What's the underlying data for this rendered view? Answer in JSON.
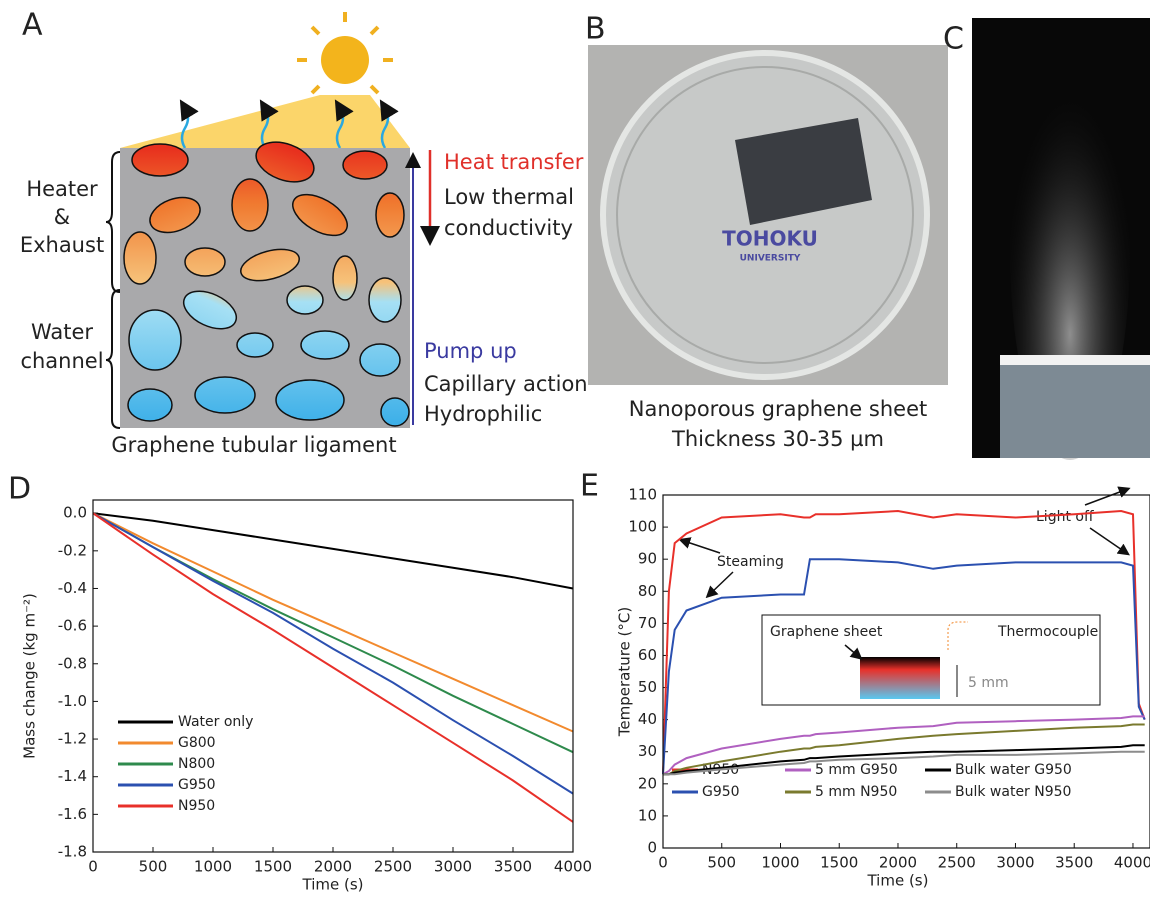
{
  "panel_a": {
    "letter": "A",
    "heater_label": [
      "Heater",
      "&",
      "Exhaust"
    ],
    "water_label": [
      "Water",
      "channel"
    ],
    "heat_transfer": "Heat transfer",
    "heat_lines": [
      "Low thermal",
      "conductivity"
    ],
    "pump_up": "Pump up",
    "pump_lines": [
      "Capillary action",
      "Hydrophilic"
    ],
    "caption": "Graphene tubular ligament"
  },
  "panel_b": {
    "letter": "B",
    "dish_text": [
      "TOHOKU",
      "UNIVERSITY"
    ],
    "caption": [
      "Nanoporous graphene sheet",
      "Thickness 30-35 µm"
    ]
  },
  "panel_c": {
    "letter": "C"
  },
  "chart_data": [
    {
      "type": "line",
      "panel_label": "D",
      "xlabel": "Time (s)",
      "ylabel": "Mass change (kg m⁻²)",
      "x": [
        0,
        500,
        1000,
        1500,
        2000,
        2500,
        3000,
        3500,
        4000
      ],
      "series": [
        {
          "name": "Water only",
          "color": "#000000",
          "values": [
            0,
            -0.04,
            -0.09,
            -0.14,
            -0.19,
            -0.24,
            -0.29,
            -0.34,
            -0.4
          ]
        },
        {
          "name": "G800",
          "color": "#f28a2e",
          "values": [
            0,
            -0.16,
            -0.31,
            -0.46,
            -0.6,
            -0.74,
            -0.88,
            -1.02,
            -1.16
          ]
        },
        {
          "name": "N800",
          "color": "#2e8a4c",
          "values": [
            0,
            -0.18,
            -0.35,
            -0.51,
            -0.66,
            -0.81,
            -0.97,
            -1.12,
            -1.27
          ]
        },
        {
          "name": "G950",
          "color": "#2b50b0",
          "values": [
            0,
            -0.18,
            -0.36,
            -0.53,
            -0.72,
            -0.9,
            -1.1,
            -1.29,
            -1.49
          ]
        },
        {
          "name": "N950",
          "color": "#e8302a",
          "values": [
            0,
            -0.22,
            -0.43,
            -0.62,
            -0.82,
            -1.02,
            -1.22,
            -1.42,
            -1.64
          ]
        }
      ],
      "xlim": [
        0,
        4000
      ],
      "xticks": [
        0,
        500,
        1000,
        1500,
        2000,
        2500,
        3000,
        3500,
        4000
      ],
      "ylim": [
        -1.8,
        0.07
      ],
      "yticks": [
        {
          "value": 0,
          "label": "0.0"
        },
        -0.2,
        -0.4,
        -0.6,
        -0.8,
        {
          "value": -1,
          "label": "-1.0"
        },
        -1.2,
        -1.4,
        -1.6,
        -1.8
      ],
      "legend": "lower left"
    },
    {
      "type": "line",
      "panel_label": "E",
      "xlabel": "Time (s)",
      "ylabel": "Temperature (°C)",
      "x": [
        0,
        50,
        100,
        200,
        500,
        1000,
        1200,
        1250,
        1300,
        1500,
        2000,
        2300,
        2500,
        3000,
        3500,
        3900,
        4000,
        4050,
        4100
      ],
      "series": [
        {
          "name": "N950",
          "color": "#e8302a",
          "values": [
            23,
            80,
            95,
            98,
            103,
            104,
            103,
            103,
            104,
            104,
            105,
            103,
            104,
            103,
            104,
            105,
            104,
            45,
            40
          ]
        },
        {
          "name": "G950",
          "color": "#2b50b0",
          "values": [
            23,
            55,
            68,
            74,
            78,
            79,
            79,
            90,
            90,
            90,
            89,
            87,
            88,
            89,
            89,
            89,
            88,
            44,
            40
          ]
        },
        {
          "name": "5 mm G950",
          "color": "#b060c0",
          "values": [
            23,
            24,
            26,
            28,
            31,
            34,
            35,
            35,
            35.5,
            36,
            37.5,
            38,
            39,
            39.5,
            40,
            40.5,
            41,
            41,
            41
          ]
        },
        {
          "name": "5 mm N950",
          "color": "#7a7a2e",
          "values": [
            23,
            23,
            24,
            25,
            27,
            30,
            31,
            31,
            31.5,
            32,
            34,
            35,
            35.5,
            36.5,
            37.5,
            38,
            38.5,
            38.5,
            38.5
          ]
        },
        {
          "name": "Bulk water G950",
          "color": "#000000",
          "values": [
            23,
            23,
            23.5,
            24,
            25,
            27,
            27.5,
            28,
            28,
            28.5,
            29.5,
            30,
            30,
            30.5,
            31,
            31.5,
            32,
            32,
            32
          ]
        },
        {
          "name": "Bulk water N950",
          "color": "#8c8c8c",
          "values": [
            23,
            23,
            23,
            23.5,
            24.5,
            26,
            26.5,
            27,
            27,
            27.5,
            28,
            28.5,
            29,
            29,
            29.5,
            30,
            30,
            30,
            30
          ]
        }
      ],
      "xlim": [
        0,
        4145
      ],
      "xticks": [
        0,
        500,
        1000,
        1500,
        2000,
        2500,
        3000,
        3500,
        4000
      ],
      "ylim": [
        0,
        110
      ],
      "yticks": [
        0,
        10,
        20,
        30,
        40,
        50,
        60,
        70,
        80,
        90,
        100,
        110
      ],
      "annotations": [
        "Steaming",
        "Light off"
      ],
      "inset_labels": [
        "Graphene sheet",
        "Thermocouple",
        "5 mm"
      ],
      "legend": "lower right"
    }
  ]
}
